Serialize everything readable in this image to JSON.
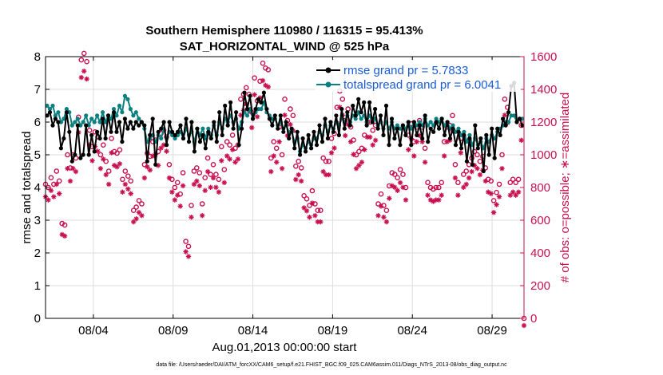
{
  "chart_data": {
    "type": "line",
    "title_line1": "Southern Hemisphere 110980 / 116315 = 95.413%",
    "title_line2": "SAT_HORIZONTAL_WIND @ 525 hPa",
    "xlabel": "Aug.01,2013 00:00:00 start",
    "ylabel_left": "rmse and totalspread",
    "ylabel_right": "# of obs: o=possible; ∗=assimilated",
    "footnote": "data file: /Users/raeder/DAI/ATM_forcXX/CAM6_setup/f.e21.FHIST_BGC.f09_025.CAM6assim.011/Diags_NTrS_2013-08/obs_diag_output.nc",
    "x_tick_labels": [
      "08/04",
      "08/09",
      "08/14",
      "08/19",
      "08/24",
      "08/29"
    ],
    "x_tick_days": [
      4,
      9,
      14,
      19,
      24,
      29
    ],
    "xlim": [
      1,
      31
    ],
    "ylim_left": [
      0,
      8
    ],
    "left_ticks": [
      "0",
      "1",
      "2",
      "3",
      "4",
      "5",
      "6",
      "7",
      "8"
    ],
    "ylim_right": [
      0,
      1600
    ],
    "right_ticks": [
      "0",
      "200",
      "400",
      "600",
      "800",
      "1000",
      "1200",
      "1400",
      "1600"
    ],
    "colors": {
      "rmse": "#000000",
      "spread": "#0c8080",
      "obs": "#c8104e",
      "legend_text": "#1a5cd8",
      "grid": "#dcdcdc"
    },
    "series": [
      {
        "name": "rmse grand pr = 5.7833",
        "values": [
          6.2,
          6.3,
          5.9,
          6.1,
          6.0,
          5.2,
          5.5,
          6.3,
          5.7,
          4.8,
          5.0,
          5.9,
          4.9,
          5.0,
          5.9,
          5.0,
          5.6,
          5.1,
          5.7,
          5.5,
          6.1,
          5.5,
          6.2,
          5.7,
          6.3,
          5.7,
          6.0,
          5.4,
          6.1,
          5.8,
          6.0,
          5.8,
          6.0,
          5.9,
          6.0,
          5.9,
          4.8,
          5.6,
          6.1,
          4.7,
          5.7,
          5.8,
          6.0,
          5.3,
          6.0,
          5.7,
          5.6,
          5.7,
          5.9,
          5.5,
          6.1,
          5.4,
          6.0,
          5.1,
          5.8,
          5.4,
          5.6,
          5.2,
          5.7,
          5.5,
          6.0,
          5.4,
          6.3,
          5.6,
          6.5,
          5.9,
          6.6,
          5.8,
          6.3,
          5.3,
          5.8,
          6.9,
          6.4,
          6.8,
          6.1,
          6.4,
          6.7,
          6.6,
          6.9,
          6.4,
          6.1,
          5.9,
          6.2,
          5.8,
          6.2,
          5.7,
          6.0,
          5.5,
          5.8,
          5.2,
          5.7,
          5.0,
          5.5,
          5.1,
          5.6,
          5.2,
          5.7,
          5.3,
          5.9,
          5.4,
          6.1,
          5.5,
          6.0,
          5.7,
          6.2,
          5.6,
          6.4,
          5.8,
          6.3,
          5.9,
          6.5,
          6.2,
          6.7,
          6.3,
          6.6,
          5.9,
          6.6,
          6.0,
          6.4,
          5.8,
          6.2,
          5.6,
          6.5,
          5.3,
          6.1,
          5.5,
          5.8,
          5.3,
          5.9,
          5.6,
          6.0,
          5.3,
          6.0,
          5.6,
          5.9,
          5.5,
          6.2,
          5.4,
          5.8,
          5.7,
          6.0,
          5.8,
          6.1,
          5.6,
          6.0,
          5.5,
          5.8,
          5.3,
          5.7,
          5.2,
          5.6,
          4.8,
          5.5,
          4.7,
          5.9,
          5.2,
          5.5,
          4.5,
          5.6,
          5.0,
          5.8,
          4.9,
          5.8,
          5.6,
          6.1,
          5.9,
          6.3,
          7.1,
          7.2,
          6.0,
          6.1,
          5.9
        ]
      },
      {
        "name": "totalspread grand pr = 6.0041",
        "values": [
          6.5,
          6.4,
          6.5,
          6.2,
          6.3,
          6.0,
          6.1,
          6.4,
          6.3,
          5.9,
          6.0,
          6.1,
          5.9,
          6.0,
          6.2,
          5.9,
          6.1,
          6.0,
          6.2,
          6.0,
          6.3,
          6.0,
          6.2,
          6.1,
          6.4,
          6.2,
          6.5,
          6.3,
          6.8,
          6.7,
          6.4,
          6.2,
          6.3,
          6.1,
          6.0,
          5.8,
          5.4,
          5.5,
          5.6,
          5.4,
          5.6,
          5.5,
          5.8,
          5.5,
          5.7,
          5.6,
          5.5,
          5.6,
          5.7,
          5.5,
          5.8,
          5.6,
          5.7,
          5.4,
          5.8,
          5.6,
          5.8,
          5.5,
          5.8,
          5.6,
          5.9,
          5.6,
          6.0,
          5.8,
          6.1,
          6.0,
          6.2,
          6.0,
          6.1,
          5.8,
          6.0,
          6.3,
          6.2,
          6.4,
          6.1,
          6.3,
          6.4,
          6.4,
          6.6,
          6.3,
          6.2,
          6.1,
          6.1,
          5.9,
          6.0,
          5.8,
          5.9,
          5.7,
          5.7,
          5.4,
          5.5,
          5.1,
          5.3,
          5.2,
          5.4,
          5.3,
          5.5,
          5.5,
          5.7,
          5.6,
          5.9,
          5.7,
          5.9,
          5.8,
          6.0,
          5.9,
          6.1,
          6.0,
          6.2,
          6.0,
          6.2,
          6.1,
          6.3,
          6.1,
          6.2,
          6.0,
          6.2,
          6.0,
          6.1,
          5.9,
          6.0,
          5.8,
          6.0,
          5.8,
          6.0,
          5.8,
          5.9,
          5.8,
          5.9,
          5.8,
          6.0,
          5.8,
          6.0,
          5.9,
          6.0,
          5.9,
          6.1,
          5.9,
          6.0,
          5.9,
          6.1,
          6.0,
          6.1,
          5.9,
          6.0,
          5.8,
          5.9,
          5.7,
          5.8,
          5.6,
          5.7,
          5.4,
          5.6,
          5.3,
          5.5,
          5.3,
          5.4,
          5.2,
          5.5,
          5.4,
          5.6,
          5.5,
          5.7,
          5.8,
          5.9,
          6.0,
          6.0,
          6.2,
          6.2,
          6.0,
          6.1,
          6.1
        ]
      }
    ],
    "obs_possible": [
      820,
      800,
      860,
      820,
      900,
      840,
      580,
      570,
      1000,
      920,
      1000,
      980,
      1230,
      1580,
      1620,
      1570,
      1150,
      1050,
      1140,
      1110,
      1000,
      1060,
      960,
      900,
      1100,
      1020,
      1010,
      1030,
      850,
      900,
      870,
      840,
      660,
      680,
      720,
      700,
      940,
      1010,
      990,
      1080,
      1090,
      1020,
      1130,
      1150,
      1110,
      940,
      850,
      800,
      830,
      760,
      890,
      470,
      440,
      690,
      900,
      920,
      890,
      700,
      860,
      980,
      880,
      940,
      880,
      850,
      1050,
      910,
      1080,
      1060,
      1120,
      1040,
      1060,
      1340,
      1370,
      1410,
      1370,
      1260,
      1470,
      1330,
      1450,
      1560,
      1530,
      1520,
      980,
      1080,
      1040,
      1170,
      1000,
      1340,
      1210,
      1280,
      1240,
      930,
      960,
      920,
      750,
      730,
      690,
      780,
      700,
      660,
      660,
      980,
      960,
      960,
      1100,
      1130,
      1290,
      1390,
      1340,
      1210,
      1280,
      1170,
      1090,
      1000,
      1020,
      1040,
      1120,
      1200,
      1200,
      1150,
      1180,
      700,
      760,
      690,
      660,
      810,
      890,
      880,
      860,
      910,
      880,
      800,
      1120,
      1190,
      1080,
      1170,
      1210,
      1170,
      1040,
      830,
      800,
      790,
      800,
      800,
      830,
      1080,
      1170,
      1180,
      1240,
      940,
      830,
      1100,
      880,
      900,
      940,
      980,
      1020,
      1000,
      960,
      990,
      920,
      850,
      840,
      720,
      770,
      820,
      1000,
      1340,
      1290,
      830,
      850,
      830,
      850,
      1180,
      0
    ]
  }
}
